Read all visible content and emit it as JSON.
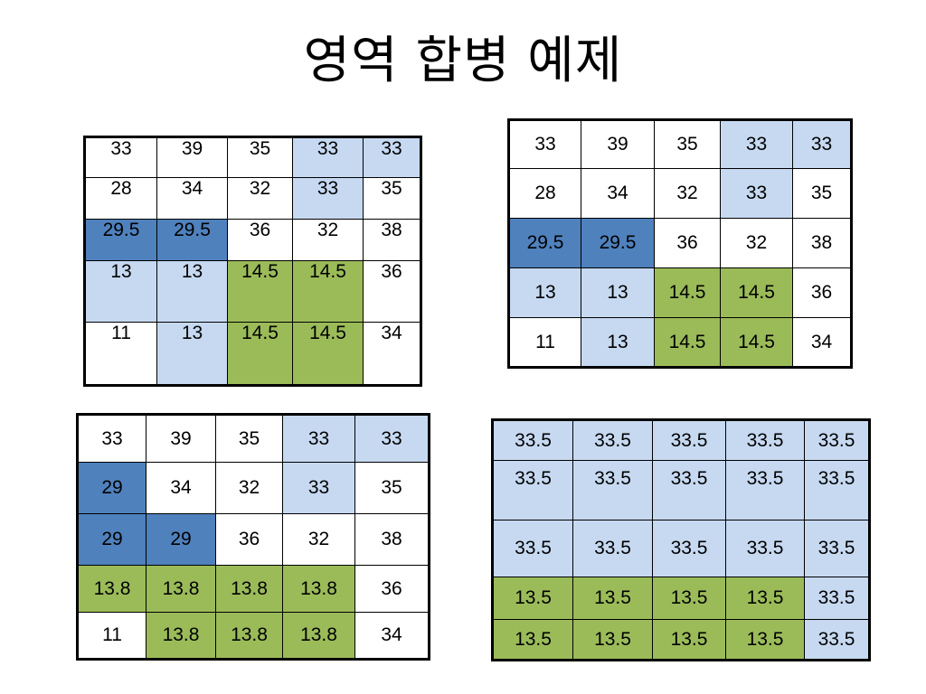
{
  "title": "영역 합병 예제",
  "colors": {
    "W": "#ffffff",
    "L": "#c6d9f1",
    "D": "#4f81bd",
    "G": "#9bbb59"
  },
  "tables": [
    {
      "rows": [
        {
          "cells": [
            {
              "v": "33",
              "c": "W"
            },
            {
              "v": "39",
              "c": "W"
            },
            {
              "v": "35",
              "c": "W"
            },
            {
              "v": "33",
              "c": "L"
            },
            {
              "v": "33",
              "c": "L"
            }
          ]
        },
        {
          "cells": [
            {
              "v": "28",
              "c": "W"
            },
            {
              "v": "34",
              "c": "W"
            },
            {
              "v": "32",
              "c": "W"
            },
            {
              "v": "33",
              "c": "L"
            },
            {
              "v": "35",
              "c": "W"
            }
          ]
        },
        {
          "cells": [
            {
              "v": "29.5",
              "c": "D"
            },
            {
              "v": "29.5",
              "c": "D"
            },
            {
              "v": "36",
              "c": "W"
            },
            {
              "v": "32",
              "c": "W"
            },
            {
              "v": "38",
              "c": "W"
            }
          ]
        },
        {
          "cells": [
            {
              "v": "13",
              "c": "L"
            },
            {
              "v": "13",
              "c": "L"
            },
            {
              "v": "14.5",
              "c": "G"
            },
            {
              "v": "14.5",
              "c": "G"
            },
            {
              "v": "36",
              "c": "W"
            }
          ]
        },
        {
          "cells": [
            {
              "v": "11",
              "c": "W"
            },
            {
              "v": "13",
              "c": "L"
            },
            {
              "v": "14.5",
              "c": "G"
            },
            {
              "v": "14.5",
              "c": "G"
            },
            {
              "v": "34",
              "c": "W"
            }
          ]
        }
      ]
    },
    {
      "rows": [
        {
          "cells": [
            {
              "v": "33",
              "c": "W"
            },
            {
              "v": "39",
              "c": "W"
            },
            {
              "v": "35",
              "c": "W"
            },
            {
              "v": "33",
              "c": "L"
            },
            {
              "v": "33",
              "c": "L"
            }
          ]
        },
        {
          "cells": [
            {
              "v": "28",
              "c": "W"
            },
            {
              "v": "34",
              "c": "W"
            },
            {
              "v": "32",
              "c": "W"
            },
            {
              "v": "33",
              "c": "L"
            },
            {
              "v": "35",
              "c": "W"
            }
          ]
        },
        {
          "cells": [
            {
              "v": "29.5",
              "c": "D"
            },
            {
              "v": "29.5",
              "c": "D"
            },
            {
              "v": "36",
              "c": "W"
            },
            {
              "v": "32",
              "c": "W"
            },
            {
              "v": "38",
              "c": "W"
            }
          ]
        },
        {
          "cells": [
            {
              "v": "13",
              "c": "L"
            },
            {
              "v": "13",
              "c": "L"
            },
            {
              "v": "14.5",
              "c": "G"
            },
            {
              "v": "14.5",
              "c": "G"
            },
            {
              "v": "36",
              "c": "W"
            }
          ]
        },
        {
          "cells": [
            {
              "v": "11",
              "c": "W"
            },
            {
              "v": "13",
              "c": "L"
            },
            {
              "v": "14.5",
              "c": "G"
            },
            {
              "v": "14.5",
              "c": "G"
            },
            {
              "v": "34",
              "c": "W"
            }
          ]
        }
      ]
    },
    {
      "rows": [
        {
          "cells": [
            {
              "v": "33",
              "c": "W"
            },
            {
              "v": "39",
              "c": "W"
            },
            {
              "v": "35",
              "c": "W"
            },
            {
              "v": "33",
              "c": "L"
            },
            {
              "v": "33",
              "c": "L"
            }
          ]
        },
        {
          "cells": [
            {
              "v": "29",
              "c": "D"
            },
            {
              "v": "34",
              "c": "W"
            },
            {
              "v": "32",
              "c": "W"
            },
            {
              "v": "33",
              "c": "L"
            },
            {
              "v": "35",
              "c": "W"
            }
          ]
        },
        {
          "cells": [
            {
              "v": "29",
              "c": "D"
            },
            {
              "v": "29",
              "c": "D"
            },
            {
              "v": "36",
              "c": "W"
            },
            {
              "v": "32",
              "c": "W"
            },
            {
              "v": "38",
              "c": "W"
            }
          ]
        },
        {
          "cells": [
            {
              "v": "13.8",
              "c": "G"
            },
            {
              "v": "13.8",
              "c": "G"
            },
            {
              "v": "13.8",
              "c": "G"
            },
            {
              "v": "13.8",
              "c": "G"
            },
            {
              "v": "36",
              "c": "W"
            }
          ]
        },
        {
          "cells": [
            {
              "v": "11",
              "c": "W"
            },
            {
              "v": "13.8",
              "c": "G"
            },
            {
              "v": "13.8",
              "c": "G"
            },
            {
              "v": "13.8",
              "c": "G"
            },
            {
              "v": "34",
              "c": "W"
            }
          ]
        }
      ]
    },
    {
      "rows": [
        {
          "cells": [
            {
              "v": "33.5",
              "c": "L"
            },
            {
              "v": "33.5",
              "c": "L"
            },
            {
              "v": "33.5",
              "c": "L"
            },
            {
              "v": "33.5",
              "c": "L"
            },
            {
              "v": "33.5",
              "c": "L"
            }
          ]
        },
        {
          "cells": [
            {
              "v": "33.5",
              "c": "L"
            },
            {
              "v": "33.5",
              "c": "L"
            },
            {
              "v": "33.5",
              "c": "L"
            },
            {
              "v": "33.5",
              "c": "L"
            },
            {
              "v": "33.5",
              "c": "L"
            }
          ]
        },
        {
          "cells": [
            {
              "v": "33.5",
              "c": "L"
            },
            {
              "v": "33.5",
              "c": "L"
            },
            {
              "v": "33.5",
              "c": "L"
            },
            {
              "v": "33.5",
              "c": "L"
            },
            {
              "v": "33.5",
              "c": "L"
            }
          ]
        },
        {
          "cells": [
            {
              "v": "13.5",
              "c": "G"
            },
            {
              "v": "13.5",
              "c": "G"
            },
            {
              "v": "13.5",
              "c": "G"
            },
            {
              "v": "13.5",
              "c": "G"
            },
            {
              "v": "33.5",
              "c": "L"
            }
          ]
        },
        {
          "cells": [
            {
              "v": "13.5",
              "c": "G"
            },
            {
              "v": "13.5",
              "c": "G"
            },
            {
              "v": "13.5",
              "c": "G"
            },
            {
              "v": "13.5",
              "c": "G"
            },
            {
              "v": "33.5",
              "c": "L"
            }
          ]
        }
      ]
    }
  ]
}
